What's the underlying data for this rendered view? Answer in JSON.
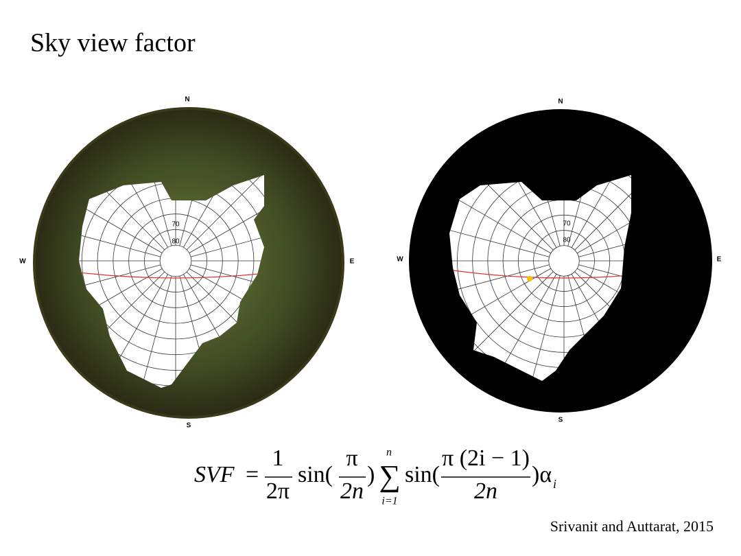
{
  "title": "Sky view factor",
  "images": [
    {
      "compass": {
        "north": "N",
        "east": "E",
        "south": "S",
        "west": "W"
      },
      "altitude_labels": [
        "70",
        "80"
      ]
    },
    {
      "compass": {
        "north": "N",
        "east": "E",
        "south": "S",
        "west": "W"
      },
      "altitude_labels": [
        "70",
        "80"
      ]
    }
  ],
  "formula": {
    "lhs": "SVF",
    "equals": "=",
    "frac1_num": "1",
    "frac1_den": "2π",
    "sin1": "sin(",
    "frac2_num": "π",
    "frac2_den": "2n",
    "close1": ")",
    "sum": "∑",
    "sum_upper": "n",
    "sum_lower": "i=1",
    "sin2": "sin(",
    "frac3_num": "π (2i − 1)",
    "frac3_den": "2n",
    "close2": ")α",
    "subscript": "i"
  },
  "citation": "Srivanit and Auttarat, 2015"
}
